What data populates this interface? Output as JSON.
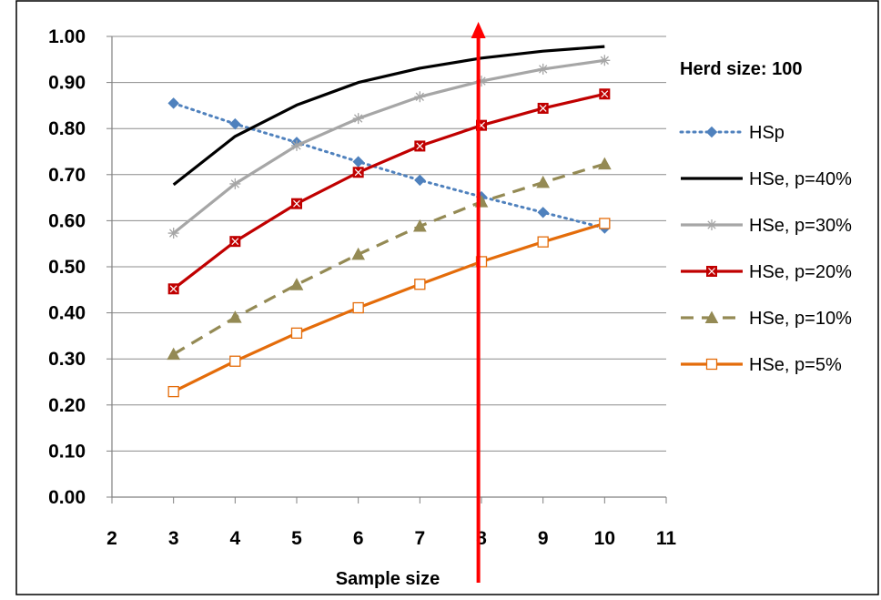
{
  "chart_data": {
    "type": "line",
    "title": "",
    "xlabel": "Sample size",
    "ylabel": "",
    "xlim": [
      2,
      11
    ],
    "ylim": [
      0,
      1
    ],
    "x_ticks": [
      "2",
      "3",
      "4",
      "5",
      "6",
      "7",
      "8",
      "9",
      "10",
      "11"
    ],
    "y_ticks": [
      "0.00",
      "0.10",
      "0.20",
      "0.30",
      "0.40",
      "0.50",
      "0.60",
      "0.70",
      "0.80",
      "0.90",
      "1.00"
    ],
    "grid": "horizontal",
    "legend_title": "Herd size: 100",
    "legend_position": "right",
    "vertical_marker_x": 7.95,
    "vertical_marker_color": "#ff0000",
    "series": [
      {
        "name": "HSp",
        "color": "#4f81bd",
        "style": "dotted",
        "marker": "diamond",
        "x": [
          3,
          4,
          5,
          6,
          7,
          8,
          9,
          10
        ],
        "values": [
          0.855,
          0.81,
          0.77,
          0.728,
          0.688,
          0.652,
          0.618,
          0.584
        ]
      },
      {
        "name": "HSe, p=40%",
        "color": "#000000",
        "style": "solid",
        "marker": "none",
        "x": [
          3,
          4,
          5,
          6,
          7,
          8,
          9,
          10
        ],
        "values": [
          0.678,
          0.783,
          0.851,
          0.9,
          0.931,
          0.953,
          0.968,
          0.978
        ]
      },
      {
        "name": "HSe, p=30%",
        "color": "#a6a6a6",
        "style": "solid",
        "marker": "star",
        "x": [
          3,
          4,
          5,
          6,
          7,
          8,
          9,
          10
        ],
        "values": [
          0.573,
          0.68,
          0.763,
          0.822,
          0.869,
          0.903,
          0.929,
          0.948
        ]
      },
      {
        "name": "HSe, p=20%",
        "color": "#c00000",
        "style": "solid",
        "marker": "hourglass",
        "x": [
          3,
          4,
          5,
          6,
          7,
          8,
          9,
          10
        ],
        "values": [
          0.452,
          0.555,
          0.637,
          0.705,
          0.762,
          0.807,
          0.844,
          0.875
        ]
      },
      {
        "name": "HSe, p=10%",
        "color": "#948a54",
        "style": "dashed",
        "marker": "triangle",
        "x": [
          3,
          4,
          5,
          6,
          7,
          8,
          9,
          10
        ],
        "values": [
          0.31,
          0.39,
          0.461,
          0.527,
          0.588,
          0.641,
          0.683,
          0.723
        ]
      },
      {
        "name": "HSe, p=5%",
        "color": "#e46c0a",
        "style": "solid",
        "marker": "square",
        "x": [
          3,
          4,
          5,
          6,
          7,
          8,
          9,
          10
        ],
        "values": [
          0.229,
          0.295,
          0.356,
          0.411,
          0.462,
          0.511,
          0.554,
          0.594
        ]
      }
    ]
  }
}
